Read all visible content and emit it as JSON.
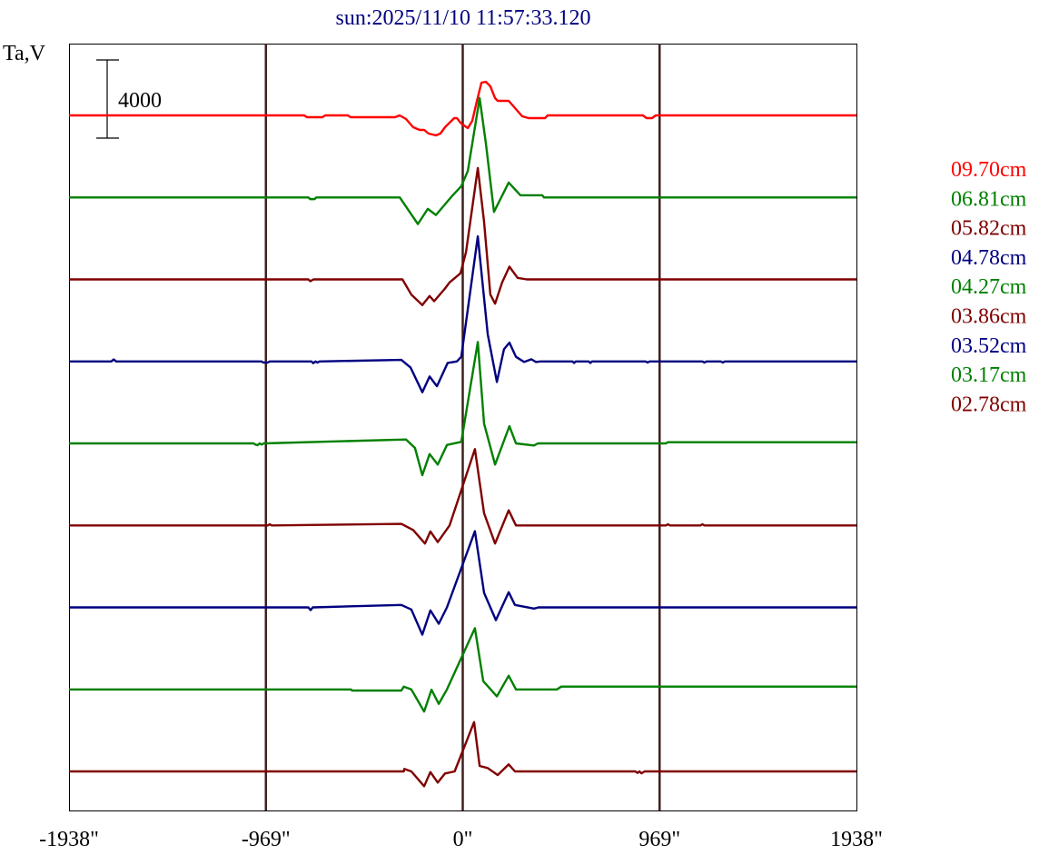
{
  "chart_data": {
    "type": "line",
    "title": "sun:2025/11/10 11:57:33.120",
    "ylabel": "Ta,V",
    "xlim": [
      -1938,
      1938
    ],
    "x_ticks": [
      "-1938\"",
      "-969\"",
      "0\"",
      "969\"",
      "1938\""
    ],
    "x_tick_values": [
      -1938,
      -969,
      0,
      969,
      1938
    ],
    "vertical_lines": [
      -969,
      0,
      969
    ],
    "scale_bar": {
      "value": 4000,
      "label": "4000"
    },
    "grid": false,
    "legend_position": "right",
    "series": [
      {
        "name": "09.70cm",
        "color": "#ff0000",
        "points": [
          [
            -1938,
            0
          ],
          [
            -780,
            0
          ],
          [
            -767,
            -93
          ],
          [
            -691,
            -93
          ],
          [
            -677,
            0
          ],
          [
            -565,
            0
          ],
          [
            -552,
            -93
          ],
          [
            -333,
            -93
          ],
          [
            -311,
            0
          ],
          [
            -279,
            -186
          ],
          [
            -244,
            -605
          ],
          [
            -212,
            -744
          ],
          [
            -190,
            -744
          ],
          [
            -168,
            -930
          ],
          [
            -132,
            -1023
          ],
          [
            -110,
            -930
          ],
          [
            -87,
            -605
          ],
          [
            -42,
            -140
          ],
          [
            -29,
            -140
          ],
          [
            -7,
            -419
          ],
          [
            25,
            -651
          ],
          [
            47,
            -279
          ],
          [
            69,
            698
          ],
          [
            92,
            1674
          ],
          [
            114,
            1721
          ],
          [
            136,
            1488
          ],
          [
            159,
            884
          ],
          [
            172,
            744
          ],
          [
            226,
            744
          ],
          [
            293,
            -47
          ],
          [
            324,
            -140
          ],
          [
            405,
            -140
          ],
          [
            418,
            0
          ],
          [
            887,
            0
          ],
          [
            905,
            -140
          ],
          [
            932,
            -140
          ],
          [
            950,
            0
          ],
          [
            1938,
            0
          ]
        ]
      },
      {
        "name": "06.81cm",
        "color": "#008000",
        "points": [
          [
            -1938,
            0
          ],
          [
            -760,
            0
          ],
          [
            -750,
            -93
          ],
          [
            -730,
            -93
          ],
          [
            -720,
            0
          ],
          [
            -310,
            0
          ],
          [
            -221,
            -1364
          ],
          [
            -172,
            -589
          ],
          [
            -132,
            -899
          ],
          [
            -56,
            31
          ],
          [
            -7,
            574
          ],
          [
            25,
            1349
          ],
          [
            83,
            5084
          ],
          [
            114,
            2759
          ],
          [
            154,
            -744
          ],
          [
            226,
            760
          ],
          [
            284,
            109
          ],
          [
            391,
            109
          ],
          [
            400,
            0
          ],
          [
            1938,
            0
          ]
        ]
      },
      {
        "name": "05.82cm",
        "color": "#800000",
        "points": [
          [
            -1938,
            0
          ],
          [
            -760,
            0
          ],
          [
            -750,
            -93
          ],
          [
            -735,
            0
          ],
          [
            -297,
            0
          ],
          [
            -253,
            -775
          ],
          [
            -199,
            -1318
          ],
          [
            -163,
            -853
          ],
          [
            -141,
            -1116
          ],
          [
            -87,
            -465
          ],
          [
            -65,
            -155
          ],
          [
            -11,
            310
          ],
          [
            16,
            1395
          ],
          [
            74,
            5704
          ],
          [
            105,
            2945
          ],
          [
            136,
            -775
          ],
          [
            159,
            -1240
          ],
          [
            194,
            -155
          ],
          [
            230,
            651
          ],
          [
            270,
            78
          ],
          [
            315,
            0
          ],
          [
            1938,
            0
          ]
        ]
      },
      {
        "name": "04.78cm",
        "color": "#000080",
        "points": [
          [
            -1938,
            0
          ],
          [
            -1730,
            0
          ],
          [
            -1718,
            100
          ],
          [
            -1706,
            0
          ],
          [
            -990,
            0
          ],
          [
            -982,
            -60
          ],
          [
            -960,
            -60
          ],
          [
            -950,
            0
          ],
          [
            -745,
            0
          ],
          [
            -736,
            -90
          ],
          [
            -725,
            0
          ],
          [
            -715,
            -60
          ],
          [
            -705,
            0
          ],
          [
            -302,
            78
          ],
          [
            -257,
            -310
          ],
          [
            -199,
            -1581
          ],
          [
            -163,
            -775
          ],
          [
            -127,
            -1271
          ],
          [
            -74,
            -78
          ],
          [
            -29,
            0
          ],
          [
            -7,
            233
          ],
          [
            74,
            6400
          ],
          [
            123,
            1395
          ],
          [
            168,
            -1054
          ],
          [
            203,
            620
          ],
          [
            230,
            961
          ],
          [
            262,
            233
          ],
          [
            302,
            -31
          ],
          [
            338,
            109
          ],
          [
            360,
            -31
          ],
          [
            382,
            0
          ],
          [
            540,
            0
          ],
          [
            548,
            -80
          ],
          [
            556,
            0
          ],
          [
            620,
            0
          ],
          [
            628,
            -80
          ],
          [
            636,
            0
          ],
          [
            900,
            0
          ],
          [
            910,
            -60
          ],
          [
            920,
            0
          ],
          [
            1180,
            0
          ],
          [
            1190,
            -60
          ],
          [
            1200,
            0
          ],
          [
            1270,
            0
          ],
          [
            1280,
            -60
          ],
          [
            1290,
            0
          ],
          [
            1938,
            0
          ]
        ]
      },
      {
        "name": "04.27cm",
        "color": "#008000",
        "points": [
          [
            -1938,
            0
          ],
          [
            -1030,
            0
          ],
          [
            -1020,
            -60
          ],
          [
            -1010,
            -93
          ],
          [
            -1000,
            0
          ],
          [
            -990,
            -60
          ],
          [
            -980,
            0
          ],
          [
            -279,
            202
          ],
          [
            -235,
            -233
          ],
          [
            -199,
            -1628
          ],
          [
            -163,
            -543
          ],
          [
            -123,
            -1085
          ],
          [
            -78,
            -78
          ],
          [
            -7,
            78
          ],
          [
            74,
            5193
          ],
          [
            105,
            1008
          ],
          [
            159,
            -1085
          ],
          [
            230,
            884
          ],
          [
            262,
            0
          ],
          [
            351,
            -109
          ],
          [
            370,
            0
          ],
          [
            1000,
            0
          ],
          [
            1010,
            60
          ],
          [
            1938,
            60
          ]
        ]
      },
      {
        "name": "03.86cm",
        "color": "#800000",
        "points": [
          [
            -1938,
            0
          ],
          [
            -960,
            0
          ],
          [
            -950,
            60
          ],
          [
            -940,
            0
          ],
          [
            -302,
            78
          ],
          [
            -244,
            -233
          ],
          [
            -186,
            -930
          ],
          [
            -159,
            -310
          ],
          [
            -123,
            -853
          ],
          [
            -65,
            0
          ],
          [
            60,
            3906
          ],
          [
            105,
            620
          ],
          [
            159,
            -930
          ],
          [
            226,
            775
          ],
          [
            262,
            0
          ],
          [
            1000,
            0
          ],
          [
            1010,
            60
          ],
          [
            1020,
            0
          ],
          [
            1170,
            0
          ],
          [
            1180,
            60
          ],
          [
            1190,
            0
          ],
          [
            1938,
            0
          ]
        ]
      },
      {
        "name": "03.52cm",
        "color": "#000080",
        "points": [
          [
            -1938,
            0
          ],
          [
            -760,
            0
          ],
          [
            -749,
            -140
          ],
          [
            -738,
            0
          ],
          [
            -302,
            124
          ],
          [
            -253,
            -109
          ],
          [
            -199,
            -1395
          ],
          [
            -159,
            -155
          ],
          [
            -118,
            -837
          ],
          [
            -78,
            0
          ],
          [
            60,
            3900
          ],
          [
            105,
            744
          ],
          [
            163,
            -651
          ],
          [
            226,
            775
          ],
          [
            257,
            124
          ],
          [
            351,
            -62
          ],
          [
            373,
            0
          ],
          [
            1938,
            0
          ]
        ]
      },
      {
        "name": "03.17cm",
        "color": "#008000",
        "points": [
          [
            -1938,
            0
          ],
          [
            -550,
            0
          ],
          [
            -545,
            -60
          ],
          [
            -302,
            -60
          ],
          [
            -290,
            140
          ],
          [
            -253,
            0
          ],
          [
            -190,
            -1132
          ],
          [
            -154,
            -16
          ],
          [
            -118,
            -744
          ],
          [
            -78,
            0
          ],
          [
            60,
            3131
          ],
          [
            101,
            419
          ],
          [
            168,
            -357
          ],
          [
            226,
            698
          ],
          [
            262,
            0
          ],
          [
            463,
            0
          ],
          [
            485,
            140
          ],
          [
            1938,
            140
          ]
        ]
      },
      {
        "name": "02.78cm",
        "color": "#800000",
        "points": [
          [
            -1938,
            0
          ],
          [
            -290,
            0
          ],
          [
            -288,
            124
          ],
          [
            -253,
            0
          ],
          [
            -190,
            -760
          ],
          [
            -159,
            -31
          ],
          [
            -123,
            -574
          ],
          [
            -87,
            -109
          ],
          [
            -40,
            0
          ],
          [
            56,
            2527
          ],
          [
            83,
            279
          ],
          [
            123,
            170
          ],
          [
            172,
            -186
          ],
          [
            226,
            357
          ],
          [
            257,
            0
          ],
          [
            850,
            0
          ],
          [
            860,
            -80
          ],
          [
            870,
            0
          ],
          [
            880,
            -100
          ],
          [
            895,
            0
          ],
          [
            1938,
            0
          ]
        ]
      }
    ]
  }
}
